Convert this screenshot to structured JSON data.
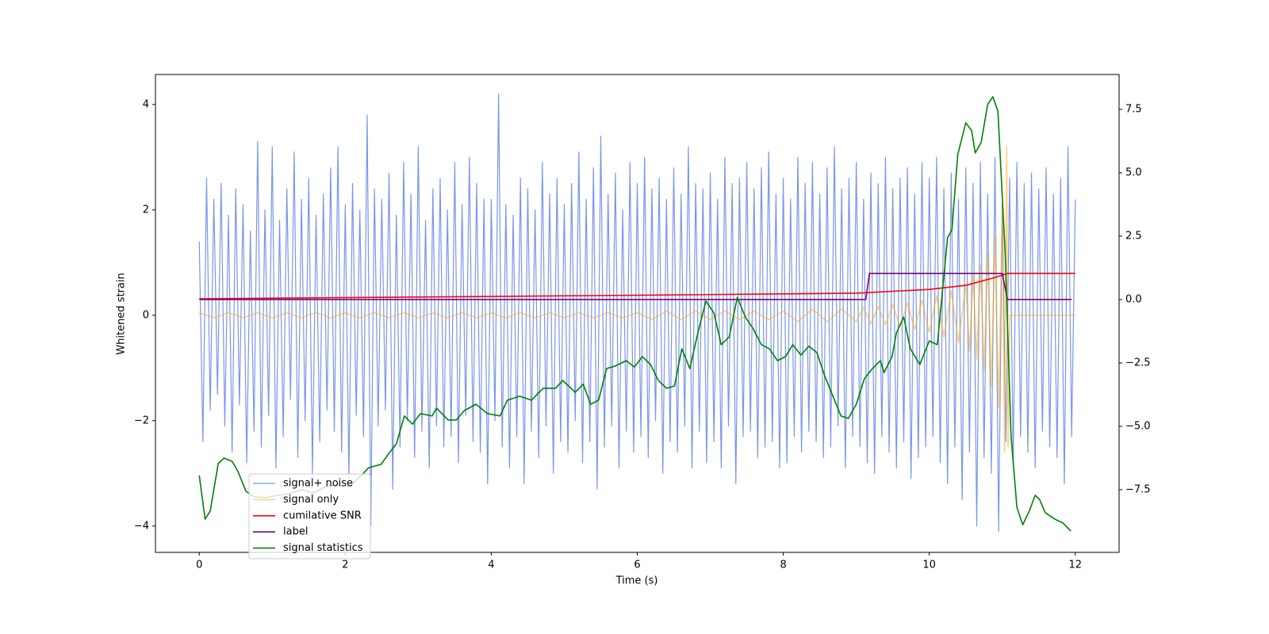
{
  "chart_data": {
    "type": "line",
    "xlabel": "Time (s)",
    "ylabel": "Whitened strain",
    "xlim": [
      -0.6,
      12.6
    ],
    "ylim": [
      -4.5,
      4.57
    ],
    "y2lim": [
      -9.97,
      8.875
    ],
    "xticks": [
      0,
      2,
      4,
      6,
      8,
      10,
      12
    ],
    "yticks": [
      {
        "value": -4,
        "label": "−4"
      },
      {
        "value": -2,
        "label": "−2"
      },
      0,
      2,
      4
    ],
    "y2ticks": [
      {
        "value": -7.5,
        "label": "−7.5"
      },
      {
        "value": -5,
        "label": "−5.0"
      },
      {
        "value": -2.5,
        "label": "−2.5"
      },
      {
        "value": 0,
        "label": "0.0"
      },
      2.5,
      {
        "value": 5,
        "label": "5.0"
      },
      7.5
    ],
    "legend": "lower left",
    "series": [
      {
        "name": "signal+ noise",
        "color": "#4169e1",
        "axis": "y",
        "x": [
          0,
          0.05,
          0.1,
          0.15,
          0.2,
          0.25,
          0.3,
          0.35,
          0.4,
          0.45,
          0.5,
          0.55,
          0.6,
          0.65,
          0.7,
          0.75,
          0.8,
          0.85,
          0.9,
          0.95,
          1,
          1.05,
          1.1,
          1.15,
          1.2,
          1.25,
          1.3,
          1.35,
          1.4,
          1.45,
          1.5,
          1.55,
          1.6,
          1.65,
          1.7,
          1.75,
          1.8,
          1.85,
          1.9,
          1.95,
          2,
          2.05,
          2.1,
          2.15,
          2.2,
          2.25,
          2.3,
          2.35,
          2.4,
          2.45,
          2.5,
          2.55,
          2.6,
          2.65,
          2.7,
          2.75,
          2.8,
          2.85,
          2.9,
          2.95,
          3,
          3.05,
          3.1,
          3.15,
          3.2,
          3.25,
          3.3,
          3.35,
          3.4,
          3.45,
          3.5,
          3.55,
          3.6,
          3.65,
          3.7,
          3.75,
          3.8,
          3.85,
          3.9,
          3.95,
          4,
          4.05,
          4.1,
          4.15,
          4.2,
          4.25,
          4.3,
          4.35,
          4.4,
          4.45,
          4.5,
          4.55,
          4.6,
          4.65,
          4.7,
          4.75,
          4.8,
          4.85,
          4.9,
          4.95,
          5,
          5.05,
          5.1,
          5.15,
          5.2,
          5.25,
          5.3,
          5.35,
          5.4,
          5.45,
          5.5,
          5.55,
          5.6,
          5.65,
          5.7,
          5.75,
          5.8,
          5.85,
          5.9,
          5.95,
          6,
          6.05,
          6.1,
          6.15,
          6.2,
          6.25,
          6.3,
          6.35,
          6.4,
          6.45,
          6.5,
          6.55,
          6.6,
          6.65,
          6.7,
          6.75,
          6.8,
          6.85,
          6.9,
          6.95,
          7,
          7.05,
          7.1,
          7.15,
          7.2,
          7.25,
          7.3,
          7.35,
          7.4,
          7.45,
          7.5,
          7.55,
          7.6,
          7.65,
          7.7,
          7.75,
          7.8,
          7.85,
          7.9,
          7.95,
          8,
          8.05,
          8.1,
          8.15,
          8.2,
          8.25,
          8.3,
          8.35,
          8.4,
          8.45,
          8.5,
          8.55,
          8.6,
          8.65,
          8.7,
          8.75,
          8.8,
          8.85,
          8.9,
          8.95,
          9,
          9.05,
          9.1,
          9.15,
          9.2,
          9.25,
          9.3,
          9.35,
          9.4,
          9.45,
          9.5,
          9.55,
          9.6,
          9.65,
          9.7,
          9.75,
          9.8,
          9.85,
          9.9,
          9.95,
          10,
          10.05,
          10.1,
          10.15,
          10.2,
          10.25,
          10.3,
          10.35,
          10.4,
          10.45,
          10.5,
          10.55,
          10.6,
          10.65,
          10.7,
          10.75,
          10.8,
          10.85,
          10.9,
          10.95,
          11,
          11.05,
          11.1,
          11.15,
          11.2,
          11.25,
          11.3,
          11.35,
          11.4,
          11.45,
          11.5,
          11.55,
          11.6,
          11.65,
          11.7,
          11.75,
          11.8,
          11.85,
          11.9,
          11.95,
          12
        ],
        "values": [
          1.4,
          -2.4,
          2.6,
          -1.8,
          2.2,
          -1.5,
          2.5,
          -2.1,
          1.9,
          -2.6,
          2.4,
          -1.7,
          2.1,
          -2.8,
          1.6,
          -2.2,
          3.3,
          -2.5,
          2.0,
          -1.9,
          3.2,
          -2.9,
          1.8,
          -2.3,
          2.4,
          -1.6,
          3.1,
          -2.7,
          2.2,
          -2.0,
          2.6,
          -3.0,
          1.9,
          -2.4,
          2.3,
          -1.8,
          2.8,
          -2.2,
          3.2,
          -2.6,
          2.1,
          -3.1,
          2.5,
          -1.9,
          2.0,
          -2.3,
          3.8,
          -4.0,
          2.4,
          -2.1,
          2.2,
          -1.8,
          2.7,
          -3.3,
          1.9,
          -2.5,
          2.9,
          -2.0,
          2.3,
          -2.7,
          3.2,
          -2.2,
          1.8,
          -2.9,
          2.4,
          -2.1,
          2.6,
          -2.5,
          2.0,
          -2.3,
          2.9,
          -2.8,
          2.1,
          -1.9,
          3.0,
          -2.4,
          2.5,
          -2.6,
          2.2,
          -3.2,
          2.2,
          -2.0,
          4.2,
          -2.5,
          2.1,
          -2.9,
          1.9,
          -2.3,
          2.6,
          -3.2,
          2.4,
          -2.2,
          2.0,
          -2.7,
          2.9,
          -2.1,
          2.3,
          -3.0,
          2.6,
          -2.4,
          2.1,
          -2.6,
          2.5,
          -2.0,
          3.1,
          -2.8,
          2.2,
          -2.4,
          2.8,
          -3.3,
          3.4,
          -2.5,
          2.3,
          -2.1,
          2.7,
          -2.9,
          2.0,
          -2.2,
          2.9,
          -2.6,
          2.5,
          -2.3,
          3.0,
          -2.7,
          2.4,
          -2.0,
          2.6,
          -3.0,
          2.2,
          -2.4,
          2.8,
          -2.6,
          2.3,
          -2.1,
          3.2,
          -2.9,
          2.5,
          -2.2,
          2.4,
          -2.8,
          2.7,
          -2.4,
          2.2,
          -2.9,
          3.0,
          -2.1,
          2.5,
          -3.2,
          2.6,
          -2.3,
          2.9,
          -2.2,
          2.4,
          -2.7,
          2.8,
          -2.5,
          3.1,
          -2.4,
          2.3,
          -2.9,
          2.6,
          -2.8,
          2.2,
          -2.3,
          3.0,
          -2.6,
          2.5,
          -2.2,
          2.9,
          -2.4,
          2.3,
          -2.7,
          2.8,
          -2.5,
          3.2,
          -2.1,
          2.4,
          -2.9,
          2.6,
          -2.3,
          2.9,
          -2.5,
          2.2,
          -2.8,
          2.7,
          -3.0,
          2.5,
          -2.3,
          3.0,
          -2.6,
          2.4,
          -2.9,
          2.6,
          -2.4,
          2.8,
          -3.1,
          2.3,
          -2.7,
          2.9,
          -2.5,
          2.6,
          -2.3,
          3.0,
          -2.8,
          2.4,
          -3.2,
          2.7,
          -2.5,
          2.2,
          -3.5,
          2.8,
          -2.6,
          2.5,
          -4.0,
          2.9,
          -2.7,
          2.3,
          -3.0,
          3.0,
          -4.1,
          2.1,
          -2.4,
          2.6,
          -2.8,
          2.9,
          -2.3,
          2.5,
          -2.6,
          2.7,
          -2.9,
          2.4,
          -2.2,
          2.8,
          -2.5,
          2.3,
          -2.7,
          2.6,
          -3.2,
          3.2,
          -2.3,
          2.2
        ]
      },
      {
        "name": "signal only",
        "color": "#ffa500",
        "axis": "y",
        "x": [
          0,
          0.2,
          0.4,
          0.6,
          0.8,
          1,
          1.2,
          1.4,
          1.6,
          1.8,
          2,
          2.2,
          2.4,
          2.6,
          2.8,
          3,
          3.2,
          3.4,
          3.6,
          3.8,
          4,
          4.2,
          4.4,
          4.6,
          4.8,
          5,
          5.2,
          5.4,
          5.6,
          5.8,
          6,
          6.2,
          6.4,
          6.6,
          6.8,
          7,
          7.2,
          7.4,
          7.6,
          7.8,
          8,
          8.2,
          8.4,
          8.6,
          8.8,
          9,
          9.1,
          9.2,
          9.3,
          9.4,
          9.5,
          9.6,
          9.7,
          9.8,
          9.9,
          10,
          10.1,
          10.2,
          10.3,
          10.4,
          10.5,
          10.55,
          10.6,
          10.65,
          10.7,
          10.75,
          10.8,
          10.85,
          10.9,
          10.95,
          11,
          11.03,
          11.06,
          11.08,
          11.1,
          12
        ],
        "values": [
          0.05,
          -0.05,
          0.05,
          -0.05,
          0.05,
          -0.05,
          0.05,
          -0.05,
          0.05,
          -0.05,
          0.05,
          -0.05,
          0.05,
          -0.05,
          0.05,
          -0.05,
          0.05,
          -0.05,
          0.05,
          -0.05,
          0.05,
          -0.05,
          0.05,
          -0.05,
          0.05,
          -0.05,
          0.05,
          -0.05,
          0.05,
          -0.05,
          0.05,
          -0.08,
          0.08,
          -0.08,
          0.08,
          -0.08,
          0.08,
          -0.08,
          0.08,
          -0.08,
          0.08,
          -0.12,
          0.12,
          -0.12,
          0.12,
          -0.12,
          0.15,
          -0.16,
          0.17,
          -0.18,
          0.2,
          -0.22,
          0.24,
          -0.27,
          0.3,
          -0.33,
          0.37,
          -0.41,
          0.46,
          -0.52,
          0.6,
          -0.68,
          0.75,
          -0.85,
          0.95,
          -1.05,
          1.2,
          -1.35,
          1.5,
          -1.75,
          2.1,
          -2.6,
          3.2,
          -2.5,
          0,
          0
        ]
      },
      {
        "name": "cumilative SNR",
        "color": "#ff0000",
        "axis": "y2",
        "x": [
          0,
          3,
          6,
          9,
          10,
          10.5,
          10.9,
          11.07,
          12
        ],
        "values": [
          0.03,
          0.1,
          0.17,
          0.25,
          0.4,
          0.56,
          0.87,
          1.03,
          1.03
        ]
      },
      {
        "name": "label",
        "color": "#800080",
        "axis": "y2",
        "x": [
          0,
          9.13,
          9.18,
          11.0,
          11.07,
          11.95
        ],
        "values": [
          0,
          0,
          1.03,
          1.03,
          0,
          0
        ]
      },
      {
        "name": "signal statistics",
        "color": "#008000",
        "axis": "y2",
        "x": [
          0,
          0.08,
          0.15,
          0.26,
          0.34,
          0.45,
          0.53,
          0.64,
          0.75,
          0.91,
          1.08,
          1.24,
          1.4,
          1.56,
          1.73,
          1.89,
          2.05,
          2.22,
          2.32,
          2.49,
          2.6,
          2.7,
          2.81,
          2.92,
          3.03,
          3.19,
          3.25,
          3.41,
          3.52,
          3.63,
          3.79,
          3.95,
          4.12,
          4.22,
          4.39,
          4.55,
          4.71,
          4.88,
          4.98,
          5.15,
          5.26,
          5.36,
          5.47,
          5.58,
          5.69,
          5.85,
          5.96,
          6.07,
          6.18,
          6.29,
          6.4,
          6.51,
          6.61,
          6.72,
          6.83,
          6.94,
          7.05,
          7.15,
          7.26,
          7.37,
          7.48,
          7.59,
          7.7,
          7.81,
          7.92,
          8.03,
          8.13,
          8.24,
          8.35,
          8.46,
          8.57,
          8.68,
          8.79,
          8.89,
          9.0,
          9.11,
          9.22,
          9.33,
          9.38,
          9.49,
          9.55,
          9.65,
          9.74,
          9.87,
          10.0,
          10.11,
          10.25,
          10.31,
          10.39,
          10.5,
          10.58,
          10.63,
          10.71,
          10.8,
          10.87,
          10.94,
          11.04,
          11.12,
          11.2,
          11.28,
          11.37,
          11.45,
          11.51,
          11.59,
          11.72,
          11.83,
          11.94
        ],
        "values": [
          -6.94,
          -8.66,
          -8.34,
          -6.47,
          -6.25,
          -6.38,
          -6.78,
          -7.56,
          -7.78,
          -7.81,
          -7.72,
          -7.66,
          -7.5,
          -7.63,
          -7.38,
          -7.31,
          -7.38,
          -6.94,
          -6.63,
          -6.5,
          -6.06,
          -5.69,
          -4.59,
          -4.91,
          -4.5,
          -4.59,
          -4.28,
          -4.75,
          -4.75,
          -4.38,
          -4.13,
          -4.5,
          -4.59,
          -3.97,
          -3.81,
          -3.97,
          -3.5,
          -3.5,
          -3.19,
          -3.66,
          -3.34,
          -4.13,
          -3.97,
          -2.72,
          -2.63,
          -2.41,
          -2.66,
          -2.25,
          -2.56,
          -3.19,
          -3.5,
          -3.41,
          -1.94,
          -2.72,
          -1.31,
          -0.06,
          -0.53,
          -1.78,
          -1.47,
          0.09,
          -0.69,
          -1.16,
          -1.78,
          -1.94,
          -2.41,
          -2.25,
          -1.78,
          -2.19,
          -1.84,
          -2.09,
          -3.03,
          -3.81,
          -4.59,
          -4.69,
          -4.13,
          -3.13,
          -2.72,
          -2.41,
          -2.88,
          -2.25,
          -1.31,
          -0.69,
          -1.94,
          -2.56,
          -1.63,
          -1.78,
          2.44,
          2.75,
          5.72,
          6.97,
          6.66,
          5.78,
          6.19,
          7.69,
          8.0,
          7.44,
          1.81,
          -5.38,
          -8.19,
          -8.88,
          -8.34,
          -7.72,
          -7.88,
          -8.41,
          -8.66,
          -8.81,
          -9.13
        ]
      }
    ]
  }
}
